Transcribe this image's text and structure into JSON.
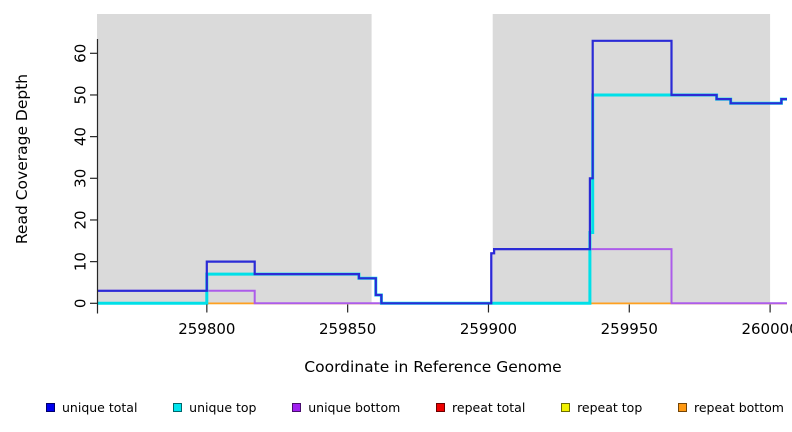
{
  "chart_data": {
    "type": "line",
    "step": true,
    "title": "",
    "xlabel": "Coordinate in Reference Genome",
    "ylabel": "Read Coverage Depth",
    "xlim": [
      259761,
      260006
    ],
    "ylim": [
      0,
      69
    ],
    "x_ticks": [
      259800,
      259850,
      259900,
      259950,
      260000
    ],
    "x_tick_labels": [
      "259800",
      "259850",
      "259900",
      "259950",
      "260000"
    ],
    "y_ticks": [
      0,
      10,
      20,
      30,
      40,
      50,
      60
    ],
    "y_tick_labels": [
      "0",
      "10",
      "20",
      "30",
      "40",
      "50",
      "60"
    ],
    "grid": false,
    "plot_background": "#ffffff",
    "background_bands": [
      {
        "x1": 259761,
        "x2": 259858.5,
        "color": "#dadada"
      },
      {
        "x1": 259901.5,
        "x2": 260000,
        "color": "#dadada"
      }
    ],
    "series": [
      {
        "name": "unique total",
        "legend_color": "#0000ee",
        "stroke": "#2b2bd6",
        "width": 2.2,
        "points": [
          [
            259761,
            3
          ],
          [
            259800,
            10
          ],
          [
            259817,
            7
          ],
          [
            259854,
            6
          ],
          [
            259860,
            2
          ],
          [
            259862,
            0
          ],
          [
            259901,
            12
          ],
          [
            259902,
            13
          ],
          [
            259936,
            30
          ],
          [
            259937,
            63
          ],
          [
            259965,
            50
          ],
          [
            259981,
            49
          ],
          [
            259986,
            48
          ],
          [
            260004,
            49
          ]
        ],
        "end": 260006
      },
      {
        "name": "unique top",
        "legend_color": "#00e5ee",
        "stroke": "#00e0e8",
        "width": 3,
        "points": [
          [
            259761,
            0
          ],
          [
            259800,
            7
          ],
          [
            259854,
            6
          ],
          [
            259860,
            2
          ],
          [
            259862,
            0
          ],
          [
            259936,
            17
          ],
          [
            259937,
            50
          ],
          [
            259981,
            49
          ],
          [
            259986,
            48
          ],
          [
            260004,
            49
          ]
        ],
        "end": 260006
      },
      {
        "name": "unique bottom",
        "legend_color": "#a020f0",
        "stroke": "#ac5cea",
        "width": 2,
        "points": [
          [
            259761,
            3
          ],
          [
            259817,
            0
          ],
          [
            259901,
            12
          ],
          [
            259902,
            13
          ],
          [
            259965,
            0
          ]
        ],
        "end": 260006
      },
      {
        "name": "repeat total",
        "legend_color": "#ee0000",
        "stroke": "#e0506e",
        "width": 1.7,
        "points": [
          [
            259761,
            0
          ]
        ],
        "end": 260006
      },
      {
        "name": "repeat top",
        "legend_color": "#f2f200",
        "stroke": "#f0f000",
        "width": 1.7,
        "points": [
          [
            259761,
            0
          ]
        ],
        "end": 260006
      },
      {
        "name": "repeat bottom",
        "legend_color": "#ff9912",
        "stroke": "#ffa020",
        "width": 1.7,
        "points": [
          [
            259761,
            0
          ]
        ],
        "end": 260006
      }
    ],
    "legend_position": "bottom"
  },
  "axes": {
    "x_label": "Coordinate in Reference Genome",
    "y_label": "Read Coverage Depth"
  },
  "legend": {
    "items": [
      {
        "key": "unique-total",
        "label": "unique total",
        "color": "#0000ee"
      },
      {
        "key": "unique-top",
        "label": "unique top",
        "color": "#00e5ee"
      },
      {
        "key": "unique-bottom",
        "label": "unique bottom",
        "color": "#a020f0"
      },
      {
        "key": "repeat-total",
        "label": "repeat total",
        "color": "#ee0000"
      },
      {
        "key": "repeat-top",
        "label": "repeat top",
        "color": "#f2f200"
      },
      {
        "key": "repeat-bottom",
        "label": "repeat bottom",
        "color": "#ff9912"
      }
    ]
  }
}
